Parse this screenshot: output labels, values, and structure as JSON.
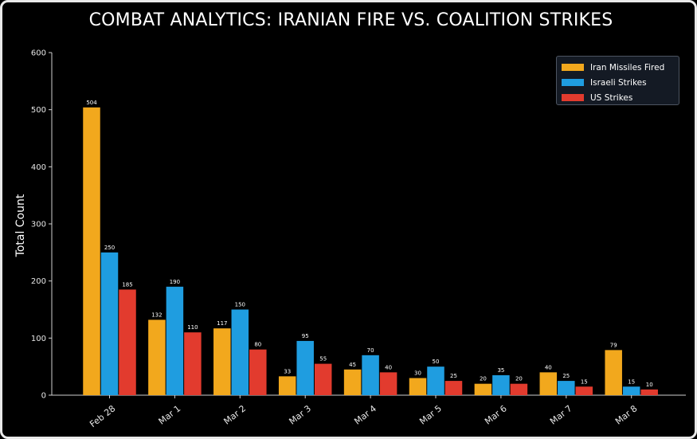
{
  "chart_data": {
    "type": "bar",
    "title": "COMBAT ANALYTICS: IRANIAN FIRE VS. COALITION STRIKES",
    "xlabel": "",
    "ylabel": "Total Count",
    "ylim": [
      0,
      600
    ],
    "yticks": [
      0,
      100,
      200,
      300,
      400,
      500,
      600
    ],
    "categories": [
      "Feb 28",
      "Mar 1",
      "Mar 2",
      "Mar 3",
      "Mar 4",
      "Mar 5",
      "Mar 6",
      "Mar 7",
      "Mar 8"
    ],
    "series": [
      {
        "name": "Iran Missiles Fired",
        "color": "#f2a81d",
        "values": [
          504,
          132,
          117,
          33,
          45,
          30,
          20,
          40,
          79
        ]
      },
      {
        "name": "Israeli Strikes",
        "color": "#1f9de0",
        "values": [
          250,
          190,
          150,
          95,
          70,
          50,
          35,
          25,
          15
        ]
      },
      {
        "name": "US Strikes",
        "color": "#e23b2e",
        "values": [
          185,
          110,
          80,
          55,
          40,
          25,
          20,
          15,
          10
        ]
      }
    ],
    "legend_position": "top-right",
    "grid": false
  }
}
